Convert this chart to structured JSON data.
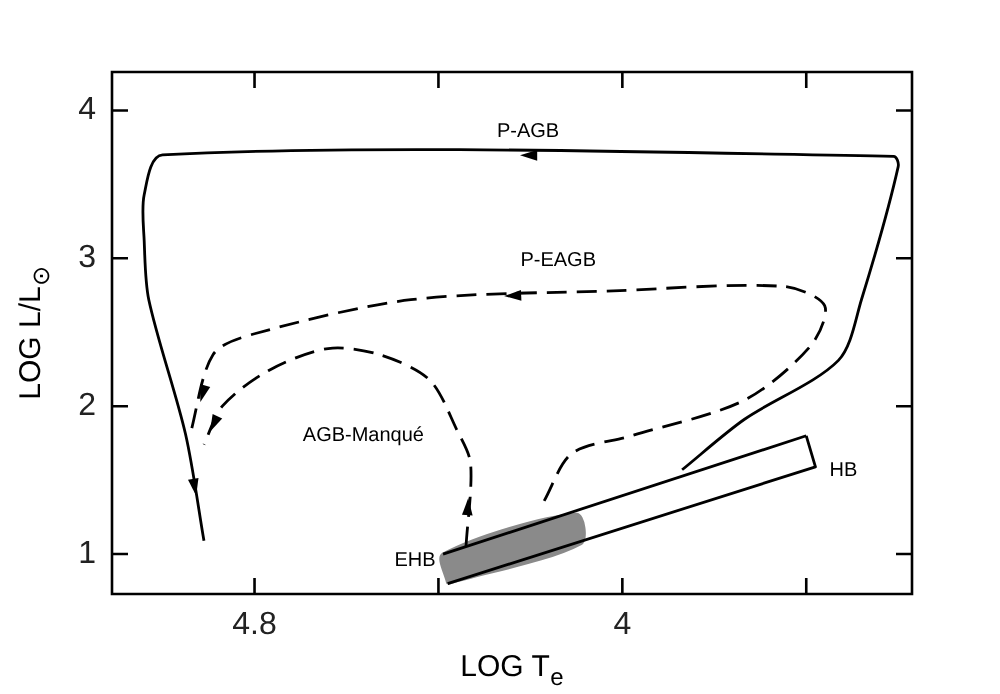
{
  "chart_data": {
    "type": "line",
    "xlabel": "LOG T$_{e}$",
    "ylabel": "LOG L/L$_{⊙}$",
    "xlim": [
      5.11,
      3.37
    ],
    "ylim": [
      0.73,
      4.26
    ],
    "xticks": [
      4.8,
      {
        "value": 4.4,
        "label": null
      },
      4.0,
      {
        "value": 3.6,
        "label": null
      }
    ],
    "yticks": [
      1,
      2,
      3,
      4
    ],
    "grid": false,
    "legend": false,
    "marker": "none",
    "series": [
      {
        "name": "P-AGB",
        "color": "#000000",
        "line_style": "solid",
        "x": [
          3.87,
          3.735,
          3.53,
          3.48,
          3.4,
          3.41,
          5.0,
          5.04,
          5.04,
          5.03,
          4.95,
          4.91
        ],
        "values": [
          1.57,
          1.91,
          2.31,
          2.72,
          3.62,
          3.69,
          3.7,
          3.43,
          3.12,
          2.72,
          1.81,
          1.09
        ]
      },
      {
        "name": "P-EAGB",
        "color": "#000000",
        "line_style": "dashed",
        "x": [
          4.17,
          4.11,
          3.98,
          3.735,
          3.59,
          3.56,
          3.65,
          4.02,
          4.46,
          4.8,
          4.89,
          4.94
        ],
        "values": [
          1.36,
          1.68,
          1.8,
          2.04,
          2.41,
          2.68,
          2.81,
          2.78,
          2.72,
          2.49,
          2.35,
          1.81
        ]
      },
      {
        "name": "AGB-Manqué",
        "color": "#000000",
        "line_style": "dashed",
        "x": [
          4.34,
          4.33,
          4.36,
          4.42,
          4.53,
          4.64,
          4.77,
          4.87,
          4.91
        ],
        "values": [
          1.05,
          1.61,
          1.84,
          2.18,
          2.35,
          2.39,
          2.24,
          2.0,
          1.74
        ]
      },
      {
        "color": "#000000",
        "line_style": "solid",
        "x": [
          4.39,
          3.6
        ],
        "values": [
          1.0,
          1.8
        ]
      },
      {
        "name": "HB",
        "color": "#000000",
        "line_style": "solid",
        "x": [
          4.38,
          3.58,
          3.6
        ],
        "values": [
          0.8,
          1.59,
          1.8
        ]
      },
      {
        "name": "EHB",
        "type": "area",
        "color": "#8a8a8a",
        "x": [
          4.38,
          4.39,
          4.1,
          4.09,
          4.38
        ],
        "values": [
          0.8,
          1.0,
          1.27,
          1.07,
          0.8
        ]
      }
    ]
  }
}
